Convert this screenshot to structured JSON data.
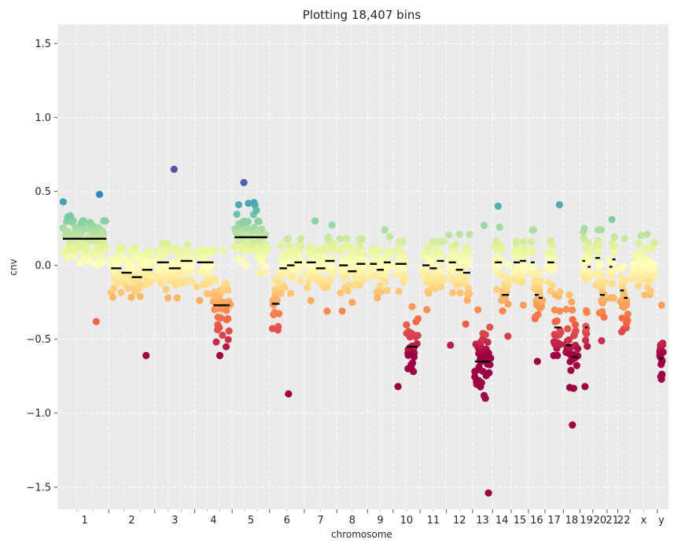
{
  "chart_data": {
    "type": "scatter",
    "title": "Plotting 18,407 bins",
    "xlabel": "chromosome",
    "ylabel": "cnv",
    "ylim": [
      -1.65,
      1.63
    ],
    "yticks": [
      1.5,
      1.0,
      0.5,
      0.0,
      -0.5,
      -1.0,
      -1.5
    ],
    "ytick_labels": [
      "1.5",
      "1.0",
      "0.5",
      "0.0",
      "−0.5",
      "−1.0",
      "−1.5"
    ],
    "grid": true,
    "background": "#ebebeb",
    "colormap": "Spectral",
    "color_stops": [
      "#9e0142",
      "#d53e4f",
      "#f46d43",
      "#fdae61",
      "#fee08b",
      "#ffffbf",
      "#e6f598",
      "#abdda4",
      "#66c2a5",
      "#3288bd",
      "#5e4fa2"
    ],
    "segment_color": "#000000",
    "chromosomes": [
      {
        "label": "1",
        "start": 0,
        "end": 1570,
        "seg": [
          0.18
        ],
        "spread": 0.09,
        "low": -0.38,
        "high": 0.48
      },
      {
        "label": "2",
        "start": 1570,
        "end": 3070,
        "seg": [
          -0.02,
          -0.05,
          -0.08,
          -0.03
        ],
        "spread": 0.09,
        "low": -0.61,
        "high": 0.12
      },
      {
        "label": "3",
        "start": 3070,
        "end": 4370,
        "seg": [
          0.02,
          -0.02,
          0.03
        ],
        "spread": 0.09,
        "low": -0.22,
        "high": 0.65
      },
      {
        "label": "4",
        "start": 4370,
        "end": 5590,
        "seg": [
          0.02,
          -0.27
        ],
        "spread": 0.1,
        "low": -0.61,
        "high": 0.1
      },
      {
        "label": "5",
        "start": 5590,
        "end": 6810,
        "seg": [
          0.19
        ],
        "spread": 0.09,
        "low": -0.05,
        "high": 0.56
      },
      {
        "label": "6",
        "start": 6810,
        "end": 7940,
        "seg": [
          -0.26,
          -0.02,
          0.0,
          0.02
        ],
        "spread": 0.09,
        "low": -0.87,
        "high": 0.18
      },
      {
        "label": "7",
        "start": 7940,
        "end": 9000,
        "seg": [
          0.02,
          -0.02,
          0.03
        ],
        "spread": 0.09,
        "low": -0.31,
        "high": 0.3
      },
      {
        "label": "8",
        "start": 9000,
        "end": 10000,
        "seg": [
          0.0,
          -0.04,
          0.01
        ],
        "spread": 0.09,
        "low": -0.31,
        "high": 0.18
      },
      {
        "label": "9",
        "start": 10000,
        "end": 10830,
        "seg": [
          0.01,
          -0.03,
          0.02
        ],
        "spread": 0.09,
        "low": -0.22,
        "high": 0.24
      },
      {
        "label": "10",
        "start": 10830,
        "end": 11710,
        "seg": [
          0.01,
          -0.55
        ],
        "spread": 0.09,
        "low": -0.82,
        "high": 0.16
      },
      {
        "label": "11",
        "start": 11710,
        "end": 12570,
        "seg": [
          0.0,
          -0.02,
          0.03
        ],
        "spread": 0.09,
        "low": -0.3,
        "high": 0.16
      },
      {
        "label": "12",
        "start": 12570,
        "end": 13420,
        "seg": [
          0.02,
          -0.03,
          -0.05
        ],
        "spread": 0.09,
        "low": -0.54,
        "high": 0.21
      },
      {
        "label": "13",
        "start": 13420,
        "end": 14070,
        "seg": [
          -0.65
        ],
        "spread": 0.12,
        "low": -1.54,
        "high": 0.27
      },
      {
        "label": "14",
        "start": 14070,
        "end": 14680,
        "seg": [
          0.02,
          -0.2
        ],
        "spread": 0.09,
        "low": -0.48,
        "high": 0.4
      },
      {
        "label": "15",
        "start": 14680,
        "end": 15240,
        "seg": [
          0.02,
          0.03
        ],
        "spread": 0.09,
        "low": -0.27,
        "high": 0.16
      },
      {
        "label": "16",
        "start": 15240,
        "end": 15780,
        "seg": [
          0.02,
          -0.2,
          -0.22
        ],
        "spread": 0.1,
        "low": -0.65,
        "high": 0.24
      },
      {
        "label": "17",
        "start": 15780,
        "end": 16380,
        "seg": [
          0.02,
          -0.42
        ],
        "spread": 0.1,
        "low": -0.61,
        "high": 0.41
      },
      {
        "label": "18",
        "start": 16380,
        "end": 16920,
        "seg": [
          -0.54,
          -0.62
        ],
        "spread": 0.13,
        "low": -1.08,
        "high": -0.2
      },
      {
        "label": "19",
        "start": 16920,
        "end": 17340,
        "seg": [
          0.03,
          -0.42,
          -0.01
        ],
        "spread": 0.1,
        "low": -0.82,
        "high": 0.25
      },
      {
        "label": "20",
        "start": 17340,
        "end": 17800,
        "seg": [
          0.05,
          -0.2
        ],
        "spread": 0.1,
        "low": -0.51,
        "high": 0.24
      },
      {
        "label": "21",
        "start": 17800,
        "end": 18150,
        "seg": [
          -0.01,
          0.04
        ],
        "spread": 0.09,
        "low": -0.22,
        "high": 0.31
      },
      {
        "label": "22",
        "start": 18150,
        "end": 18550,
        "seg": [
          -0.17,
          -0.22
        ],
        "spread": 0.1,
        "low": -0.45,
        "high": 0.18
      },
      {
        "label": "x",
        "start": 18550,
        "end": 19440,
        "seg": [],
        "spread": 0.09,
        "low": -0.2,
        "high": 0.21
      },
      {
        "label": "y",
        "start": 19440,
        "end": 19700,
        "seg": [
          -0.63
        ],
        "spread": 0.07,
        "low": -0.77,
        "high": -0.27
      }
    ]
  }
}
